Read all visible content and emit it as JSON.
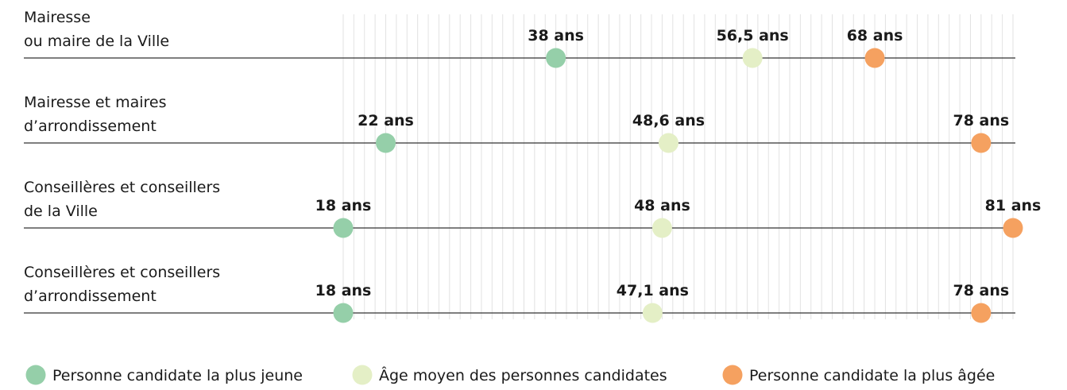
{
  "chart_data": {
    "type": "dot",
    "categories": [
      [
        "Mairesse",
        "ou maire de la Ville"
      ],
      [
        "Mairesse et maires",
        "d’arrondissement"
      ],
      [
        "Conseillères et conseillers",
        "de la Ville"
      ],
      [
        "Conseillères et conseillers",
        "d’arrondissement"
      ]
    ],
    "series": [
      {
        "name": "Personne candidate la plus jeune",
        "color": "#95cfa9",
        "values": [
          38,
          22,
          18,
          18
        ],
        "value_labels": [
          "38 ans",
          "22 ans",
          "18 ans",
          "18 ans"
        ]
      },
      {
        "name": "Âge moyen des personnes candidates",
        "color": "#e4efc6",
        "values": [
          56.5,
          48.6,
          48,
          47.1
        ],
        "value_labels": [
          "56,5 ans",
          "48,6 ans",
          "48 ans",
          "47,1 ans"
        ]
      },
      {
        "name": "Personne candidate la plus âgée",
        "color": "#f5a160",
        "values": [
          68,
          78,
          81,
          78
        ],
        "value_labels": [
          "68 ans",
          "78 ans",
          "81 ans",
          "78 ans"
        ]
      }
    ],
    "xlim": [
      18,
      81
    ],
    "xticks": [
      18,
      19,
      20,
      21,
      22,
      23,
      24,
      25,
      26,
      27,
      28,
      29,
      30,
      31,
      32,
      33,
      34,
      35,
      36,
      37,
      38,
      39,
      40,
      41,
      42,
      43,
      44,
      45,
      46,
      47,
      48,
      49,
      50,
      51,
      52,
      53,
      54,
      55,
      56,
      57,
      58,
      59,
      60,
      61,
      62,
      63,
      64,
      65,
      66,
      67,
      68,
      69,
      70,
      71,
      72,
      73,
      74,
      75,
      76,
      77,
      78,
      79,
      80,
      81
    ],
    "grid": true
  }
}
